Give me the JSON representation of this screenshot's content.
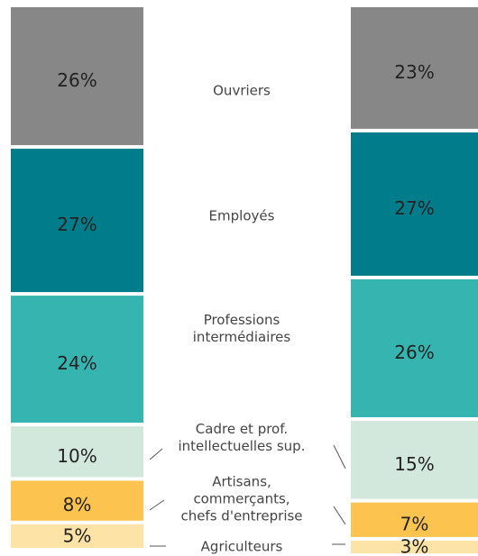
{
  "chart_data": {
    "type": "bar",
    "stacked": true,
    "categories": [
      null,
      null
    ],
    "series": [
      {
        "name": "Ouvriers",
        "color": "#878787",
        "values": [
          26,
          23
        ],
        "value_labels": [
          "26%",
          "23%"
        ]
      },
      {
        "name": "Employés",
        "color": "#007c8a",
        "values": [
          27,
          27
        ],
        "value_labels": [
          "27%",
          "27%"
        ]
      },
      {
        "name": "Professions\nintermédiaires",
        "color": "#35b4b0",
        "values": [
          24,
          26
        ],
        "value_labels": [
          "24%",
          "26%"
        ]
      },
      {
        "name": "Cadre et prof.\nintellectuelles sup.",
        "color": "#d3e8dd",
        "values": [
          10,
          15
        ],
        "value_labels": [
          "10%",
          "15%"
        ]
      },
      {
        "name": "Artisans,\ncommerçants,\nchefs d'entreprise",
        "color": "#fcc44f",
        "values": [
          8,
          7
        ],
        "value_labels": [
          "8%",
          "7%"
        ]
      },
      {
        "name": "Agriculteurs",
        "color": "#fde4a6",
        "values": [
          5,
          3
        ],
        "value_labels": [
          "5%",
          "3%"
        ]
      }
    ]
  }
}
